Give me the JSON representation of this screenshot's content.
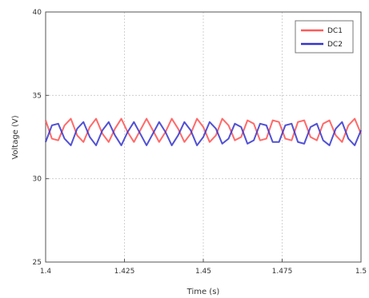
{
  "chart_data": {
    "type": "line",
    "xlabel": "Time (s)",
    "ylabel": "Voltage (V)",
    "xlim": [
      1.4,
      1.5
    ],
    "ylim": [
      25,
      40
    ],
    "x_ticks": [
      1.4,
      1.425,
      1.45,
      1.475,
      1.5
    ],
    "x_tick_labels": [
      "1.4",
      "1.425",
      "1.45",
      "1.475",
      "1.5"
    ],
    "y_ticks": [
      25,
      30,
      35,
      40
    ],
    "y_tick_labels": [
      "25",
      "30",
      "35",
      "40"
    ],
    "grid": true,
    "legend_position": "top-right",
    "series": [
      {
        "name": "DC1",
        "color": "#ff5a5a",
        "x": [
          1.4,
          1.402,
          1.404,
          1.406,
          1.408,
          1.41,
          1.412,
          1.414,
          1.416,
          1.418,
          1.42,
          1.422,
          1.424,
          1.426,
          1.428,
          1.43,
          1.432,
          1.434,
          1.436,
          1.438,
          1.44,
          1.442,
          1.444,
          1.446,
          1.448,
          1.45,
          1.452,
          1.454,
          1.456,
          1.458,
          1.46,
          1.462,
          1.464,
          1.466,
          1.468,
          1.47,
          1.472,
          1.474,
          1.476,
          1.478,
          1.48,
          1.482,
          1.484,
          1.486,
          1.488,
          1.49,
          1.492,
          1.494,
          1.496,
          1.498,
          1.5
        ],
        "y": [
          33.5,
          32.4,
          32.3,
          33.2,
          33.6,
          32.6,
          32.2,
          33.1,
          33.6,
          32.7,
          32.2,
          33.0,
          33.6,
          32.8,
          32.2,
          32.9,
          33.6,
          32.9,
          32.2,
          32.8,
          33.6,
          33.0,
          32.2,
          32.7,
          33.6,
          33.1,
          32.2,
          32.6,
          33.6,
          33.2,
          32.3,
          32.5,
          33.5,
          33.3,
          32.3,
          32.4,
          33.5,
          33.4,
          32.4,
          32.3,
          33.4,
          33.5,
          32.5,
          32.3,
          33.3,
          33.5,
          32.6,
          32.2,
          33.2,
          33.6,
          32.7
        ]
      },
      {
        "name": "DC2",
        "color": "#3333cc",
        "x": [
          1.4,
          1.402,
          1.404,
          1.406,
          1.408,
          1.41,
          1.412,
          1.414,
          1.416,
          1.418,
          1.42,
          1.422,
          1.424,
          1.426,
          1.428,
          1.43,
          1.432,
          1.434,
          1.436,
          1.438,
          1.44,
          1.442,
          1.444,
          1.446,
          1.448,
          1.45,
          1.452,
          1.454,
          1.456,
          1.458,
          1.46,
          1.462,
          1.464,
          1.466,
          1.468,
          1.47,
          1.472,
          1.474,
          1.476,
          1.478,
          1.48,
          1.482,
          1.484,
          1.486,
          1.488,
          1.49,
          1.492,
          1.494,
          1.496,
          1.498,
          1.5
        ],
        "y": [
          32.2,
          33.2,
          33.3,
          32.4,
          32.0,
          33.0,
          33.4,
          32.5,
          32.0,
          32.9,
          33.4,
          32.6,
          32.0,
          32.8,
          33.4,
          32.7,
          32.0,
          32.7,
          33.4,
          32.8,
          32.0,
          32.6,
          33.4,
          32.9,
          32.0,
          32.5,
          33.4,
          33.0,
          32.1,
          32.4,
          33.3,
          33.1,
          32.1,
          32.3,
          33.3,
          33.2,
          32.2,
          32.2,
          33.2,
          33.3,
          32.2,
          32.1,
          33.1,
          33.3,
          32.3,
          32.0,
          33.0,
          33.4,
          32.4,
          32.0,
          32.9
        ]
      }
    ]
  }
}
